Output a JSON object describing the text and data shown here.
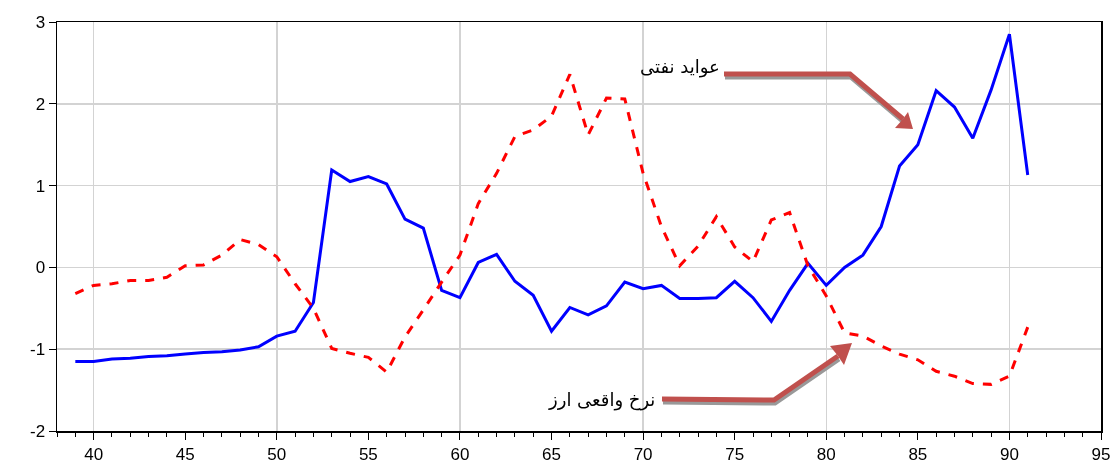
{
  "chart_data": {
    "type": "line",
    "x": [
      39,
      40,
      41,
      42,
      43,
      44,
      45,
      46,
      47,
      48,
      49,
      50,
      51,
      52,
      53,
      54,
      55,
      56,
      57,
      58,
      59,
      60,
      61,
      62,
      63,
      64,
      65,
      66,
      67,
      68,
      69,
      70,
      71,
      72,
      73,
      74,
      75,
      76,
      77,
      78,
      79,
      80,
      81,
      82,
      83,
      84,
      85,
      86,
      87,
      88,
      89,
      90,
      91
    ],
    "series": [
      {
        "color": "#0000ff",
        "line_style": "solid",
        "values": [
          -1.15,
          -1.15,
          -1.12,
          -1.11,
          -1.09,
          -1.08,
          -1.06,
          -1.04,
          -1.03,
          -1.01,
          -0.97,
          -0.84,
          -0.78,
          -0.43,
          1.19,
          1.05,
          1.11,
          1.02,
          0.59,
          0.48,
          -0.28,
          -0.37,
          0.06,
          0.16,
          -0.17,
          -0.34,
          -0.78,
          -0.49,
          -0.58,
          -0.47,
          -0.18,
          -0.26,
          -0.22,
          -0.38,
          -0.38,
          -0.37,
          -0.17,
          -0.37,
          -0.66,
          -0.28,
          0.05,
          -0.22,
          0.0,
          0.15,
          0.5,
          1.24,
          1.5,
          2.16,
          1.96,
          1.58,
          2.17,
          2.85,
          1.13
        ]
      },
      {
        "color": "#ff0000",
        "line_style": "dashed",
        "values": [
          -0.32,
          -0.22,
          -0.2,
          -0.16,
          -0.16,
          -0.12,
          0.02,
          0.03,
          0.15,
          0.34,
          0.28,
          0.13,
          -0.2,
          -0.5,
          -0.99,
          -1.05,
          -1.1,
          -1.28,
          -0.85,
          -0.52,
          -0.18,
          0.15,
          0.78,
          1.15,
          1.6,
          1.68,
          1.85,
          2.36,
          1.62,
          2.07,
          2.06,
          1.15,
          0.5,
          0.02,
          0.26,
          0.62,
          0.25,
          0.07,
          0.58,
          0.67,
          0.02,
          -0.35,
          -0.8,
          -0.84,
          -0.96,
          -1.06,
          -1.13,
          -1.27,
          -1.33,
          -1.42,
          -1.43,
          -1.33,
          -0.73
        ]
      }
    ],
    "xlim": [
      38,
      95
    ],
    "xticks": [
      40,
      45,
      50,
      55,
      60,
      65,
      70,
      75,
      80,
      85,
      90,
      95
    ],
    "ylim": [
      -2,
      3
    ],
    "yticks": [
      -2,
      -1,
      0,
      1,
      2,
      3
    ],
    "grid": true,
    "marker": "none",
    "annotations": [
      "عواید نفتی",
      "نرخ واقعی ارز"
    ]
  }
}
